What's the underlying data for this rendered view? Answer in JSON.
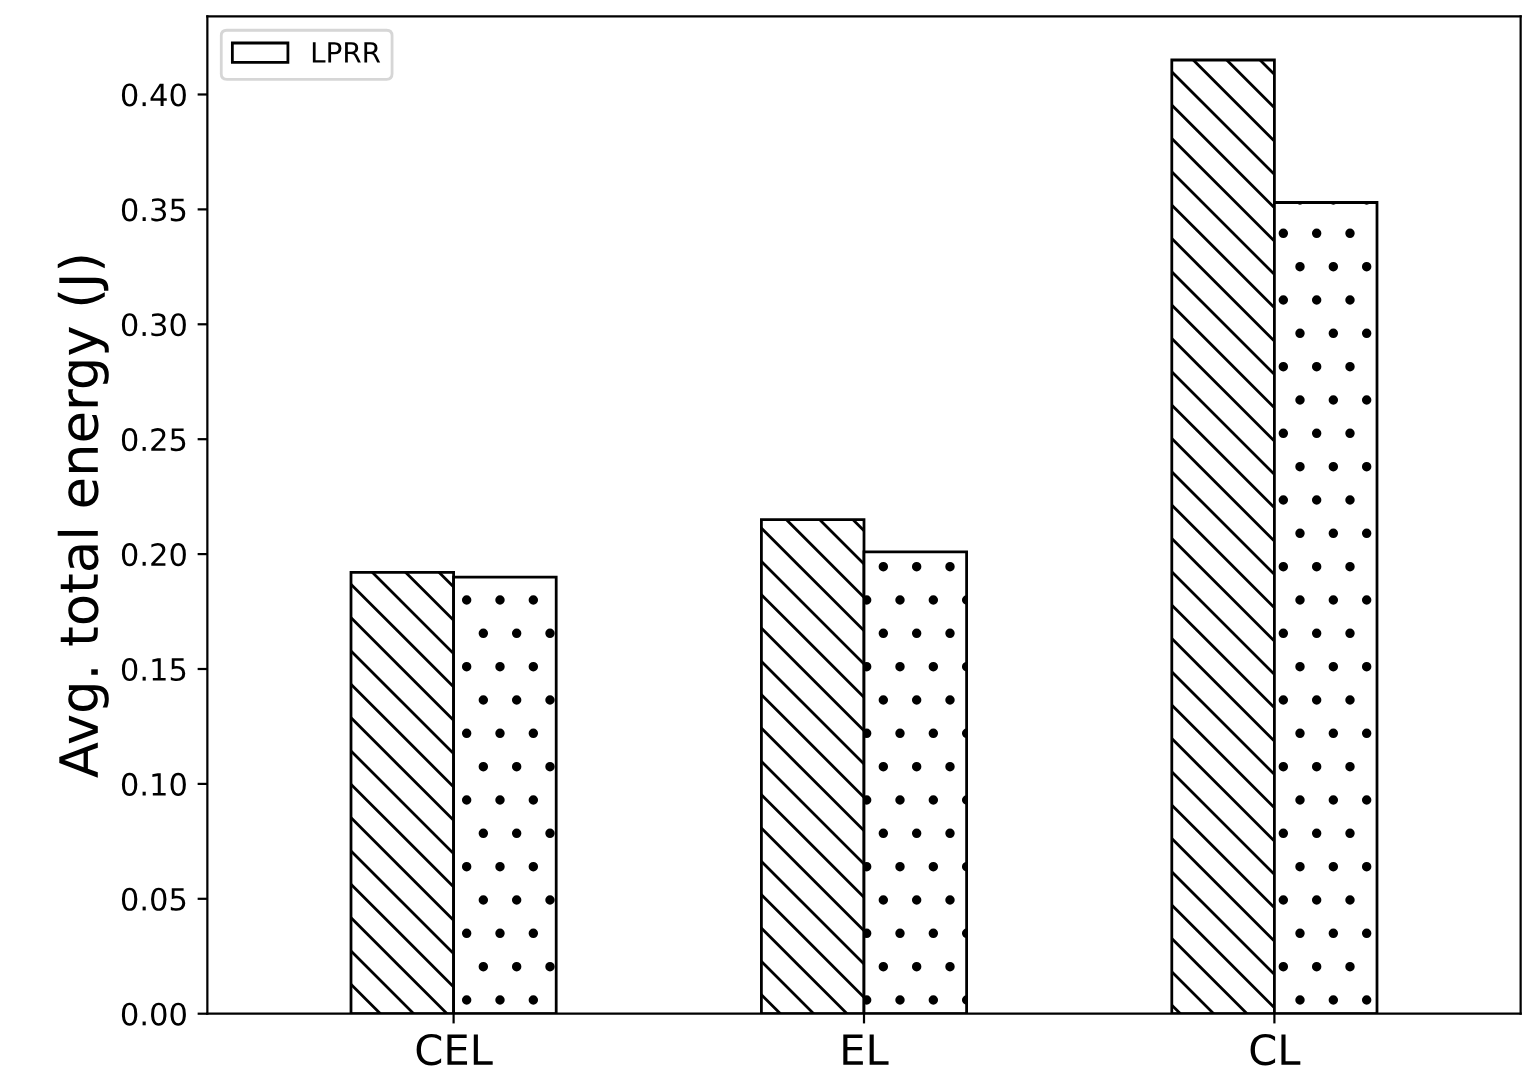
{
  "chart_data": {
    "type": "bar",
    "ylabel": "Avg. total energy (J)",
    "categories": [
      "CEL",
      "EL",
      "CL"
    ],
    "series": [
      {
        "color": "#000000",
        "values": [
          0.192,
          0.215,
          0.415
        ]
      },
      {
        "name": "LPRR",
        "color": "#000000",
        "values": [
          0.19,
          0.201,
          0.353
        ]
      }
    ],
    "ylim": [
      0,
      0.434
    ],
    "yticks": [
      {
        "value": 0,
        "label": "0.00"
      },
      {
        "value": 0.05,
        "label": "0.05"
      },
      {
        "value": 0.1,
        "label": "0.10"
      },
      {
        "value": 0.15,
        "label": "0.15"
      },
      {
        "value": 0.2,
        "label": "0.20"
      },
      {
        "value": 0.25,
        "label": "0.25"
      },
      {
        "value": 0.3,
        "label": "0.30"
      },
      {
        "value": 0.35,
        "label": "0.35"
      },
      {
        "value": 0.4,
        "label": "0.40"
      }
    ],
    "grid": false,
    "legend": "top left"
  }
}
